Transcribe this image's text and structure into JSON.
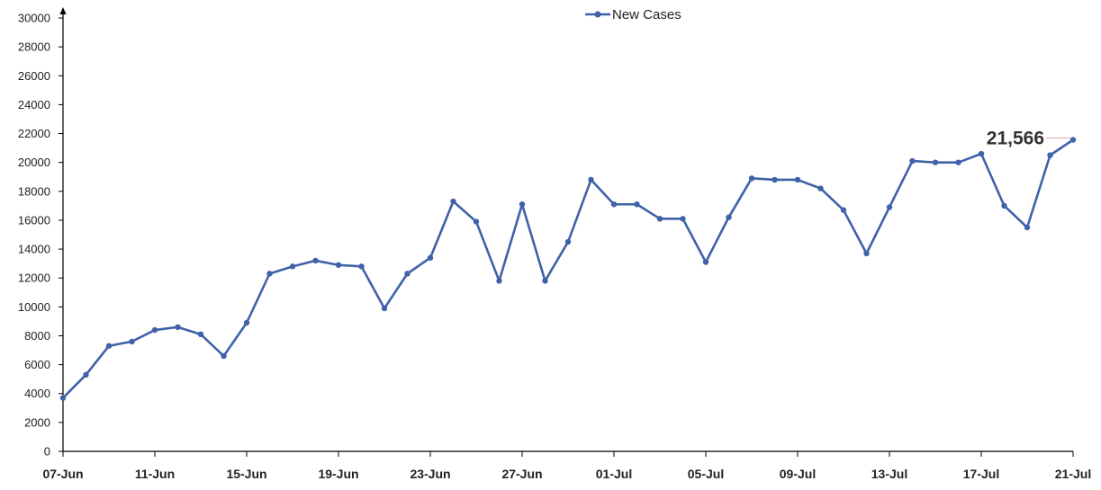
{
  "chart_data": {
    "type": "line",
    "title": "",
    "xlabel": "",
    "ylabel": "",
    "ylim": [
      0,
      30000
    ],
    "yticks": [
      0,
      2000,
      4000,
      6000,
      8000,
      10000,
      12000,
      14000,
      16000,
      18000,
      20000,
      22000,
      24000,
      26000,
      28000,
      30000
    ],
    "x": [
      "07-Jun",
      "08-Jun",
      "09-Jun",
      "10-Jun",
      "11-Jun",
      "12-Jun",
      "13-Jun",
      "14-Jun",
      "15-Jun",
      "16-Jun",
      "17-Jun",
      "18-Jun",
      "19-Jun",
      "20-Jun",
      "21-Jun",
      "22-Jun",
      "23-Jun",
      "24-Jun",
      "25-Jun",
      "26-Jun",
      "27-Jun",
      "28-Jun",
      "29-Jun",
      "30-Jun",
      "01-Jul",
      "02-Jul",
      "03-Jul",
      "04-Jul",
      "05-Jul",
      "06-Jul",
      "07-Jul",
      "08-Jul",
      "09-Jul",
      "10-Jul",
      "11-Jul",
      "12-Jul",
      "13-Jul",
      "14-Jul",
      "15-Jul",
      "16-Jul",
      "17-Jul",
      "18-Jul",
      "19-Jul",
      "20-Jul",
      "21-Jul"
    ],
    "xtick_labels": [
      "07-Jun",
      "11-Jun",
      "15-Jun",
      "19-Jun",
      "23-Jun",
      "27-Jun",
      "01-Jul",
      "05-Jul",
      "09-Jul",
      "13-Jul",
      "17-Jul",
      "21-Jul"
    ],
    "series": [
      {
        "name": "New Cases",
        "color": "#3F62A8",
        "values": [
          3700,
          5300,
          7300,
          7600,
          8400,
          8600,
          8100,
          6600,
          8900,
          12300,
          12800,
          13200,
          12900,
          12800,
          9900,
          12300,
          13400,
          17300,
          15900,
          11800,
          17100,
          11800,
          14500,
          18800,
          17100,
          17100,
          16100,
          16100,
          13100,
          16200,
          18900,
          18800,
          18800,
          18200,
          16700,
          13700,
          16900,
          20100,
          20000,
          20000,
          20600,
          17000,
          15500,
          20500,
          21566
        ]
      }
    ],
    "annotation": {
      "label": "21,566",
      "point": "21-Jul"
    },
    "legend_position": "top-center",
    "grid": false
  }
}
